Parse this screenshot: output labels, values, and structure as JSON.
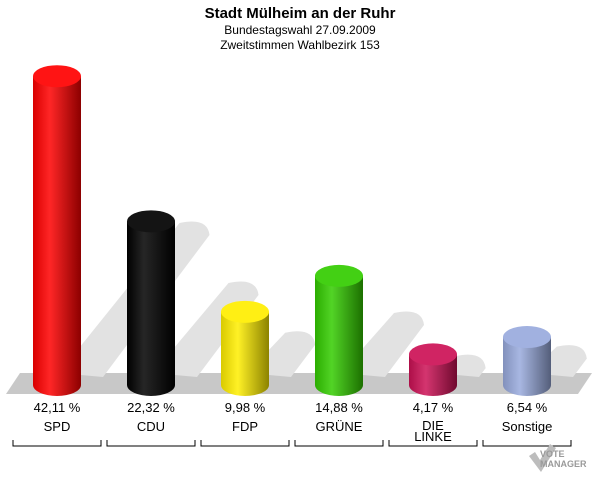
{
  "chart_data": {
    "type": "bar",
    "title": "Stadt Mülheim an der Ruhr",
    "subtitle": [
      "Bundestagswahl 27.09.2009",
      "Zweitstimmen Wahlbezirk 153"
    ],
    "categories": [
      "SPD",
      "CDU",
      "FDP",
      "GRÜNE",
      "DIE LINKE",
      "Sonstige"
    ],
    "category_lines": [
      [
        "SPD"
      ],
      [
        "CDU"
      ],
      [
        "FDP"
      ],
      [
        "GRÜNE"
      ],
      [
        "DIE",
        "LINKE"
      ],
      [
        "Sonstige"
      ]
    ],
    "values": [
      42.11,
      22.32,
      9.98,
      14.88,
      4.17,
      6.54
    ],
    "value_labels": [
      "42,11 %",
      "22,32 %",
      "9,98 %",
      "14,88 %",
      "4,17 %",
      "6,54 %"
    ],
    "colors": [
      "#ff0000",
      "#000000",
      "#ffee00",
      "#33cc00",
      "#cc1155",
      "#99aadd"
    ],
    "ylim": [
      0,
      45
    ],
    "grid": false,
    "legend": "none"
  },
  "watermark": "VOTE MANAGER"
}
